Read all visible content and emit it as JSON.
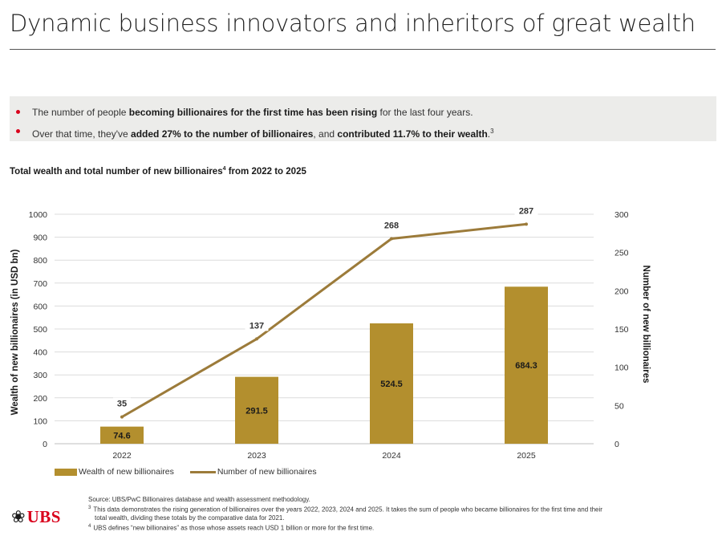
{
  "header": {
    "title": "Dynamic business innovators and inheritors of great wealth"
  },
  "callout": {
    "bullet_color": "#d9001b",
    "b1_pre": "The number of people ",
    "b1_bold": "becoming billionaires for the first time has been rising",
    "b1_post": " for the last four years.",
    "b2_pre": "Over that time, they've ",
    "b2_bold1": "added 27% to the number of billionaires",
    "b2_mid": ", and ",
    "b2_bold2": "contributed 11.7% to their wealth",
    "b2_post": ".",
    "b2_sup": "3"
  },
  "chart_title": {
    "text": "Total wealth and total number of new billionaires",
    "sup": "4",
    "suffix": " from 2022 to 2025"
  },
  "chart_data": {
    "type": "bar",
    "categories": [
      "2022",
      "2023",
      "2024",
      "2025"
    ],
    "series": [
      {
        "name": "Wealth of new billionaires",
        "type": "bar",
        "axis": "left",
        "color": "#b38f2e",
        "values": [
          74.6,
          291.5,
          524.5,
          684.3
        ],
        "labels": [
          "74.6",
          "291.5",
          "524.5",
          "684.3"
        ]
      },
      {
        "name": "Number of new billionaires",
        "type": "line",
        "axis": "right",
        "color": "#9c7b3a",
        "values": [
          35,
          137,
          268,
          287
        ],
        "labels": [
          "35",
          "137",
          "268",
          "287"
        ]
      }
    ],
    "y_left": {
      "label": "Wealth of new billionaires (in USD bn)",
      "min": 0,
      "max": 1000,
      "ticks": [
        0,
        100,
        200,
        300,
        400,
        500,
        600,
        700,
        800,
        900,
        1000
      ]
    },
    "y_right": {
      "label": "Number of new billionaires",
      "min": 0,
      "max": 300,
      "ticks": [
        0,
        50,
        100,
        150,
        200,
        250,
        300
      ]
    },
    "grid": true,
    "legend_position": "bottom-left"
  },
  "footer": {
    "logo_text": "UBS",
    "source": "Source: UBS/PwC Billionaires database and wealth assessment methodology.",
    "note3_num": "3",
    "note3_a": "This data demonstrates the rising generation of billionaires over the years 2022, 2023, 2024 and 2025. It takes the sum of people who became billionaires for the first time and their",
    "note3_b": "total wealth, dividing these totals by the comparative data for 2021.",
    "note4_num": "4",
    "note4": "UBS defines “new billionaires” as those whose assets reach USD 1 billion or more for the first time."
  }
}
